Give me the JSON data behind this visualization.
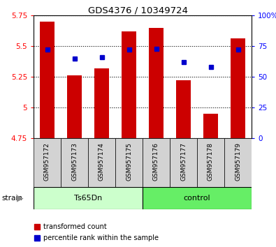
{
  "title": "GDS4376 / 10349724",
  "samples": [
    "GSM957172",
    "GSM957173",
    "GSM957174",
    "GSM957175",
    "GSM957176",
    "GSM957177",
    "GSM957178",
    "GSM957179"
  ],
  "red_values": [
    5.7,
    5.26,
    5.32,
    5.62,
    5.65,
    5.22,
    4.95,
    5.56
  ],
  "blue_values": [
    72,
    65,
    66,
    72,
    73,
    62,
    58,
    72
  ],
  "ylim_left": [
    4.75,
    5.75
  ],
  "ylim_right": [
    0,
    100
  ],
  "yticks_left": [
    4.75,
    5.0,
    5.25,
    5.5,
    5.75
  ],
  "yticks_right": [
    0,
    25,
    50,
    75,
    100
  ],
  "ytick_labels_left": [
    "4.75",
    "5",
    "5.25",
    "5.5",
    "5.75"
  ],
  "ytick_labels_right": [
    "0",
    "25",
    "50",
    "75",
    "100%"
  ],
  "bar_color": "#cc0000",
  "marker_color": "#0000cc",
  "bar_width": 0.55,
  "legend_items": [
    {
      "label": "transformed count",
      "color": "#cc0000"
    },
    {
      "label": "percentile rank within the sample",
      "color": "#0000cc"
    }
  ],
  "strain_label": "strain",
  "ts65dn_color": "#ccffcc",
  "control_color": "#66ee66",
  "label_area_color": "#cccccc",
  "plot_bg_color": "#ffffff",
  "n_ts65dn": 4,
  "n_control": 4
}
